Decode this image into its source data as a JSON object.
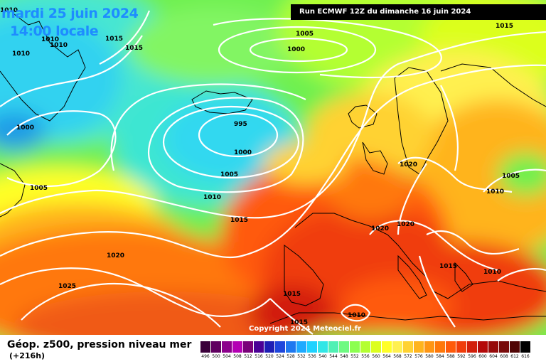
{
  "header": {
    "date": "mardi 25 juin 2024",
    "time": "14:00 locale",
    "run": "Run ECMWF 12Z du dimanche 16 juin 2024"
  },
  "copyright": "Copyright 2024 Meteociel.fr",
  "footer": {
    "title": "Géop. z500, pression niveau mer",
    "subtitle": "(+216h)"
  },
  "isobar_labels": [
    "1010",
    "1010",
    "1010",
    "1015",
    "1015",
    "1005",
    "1000",
    "1015",
    "1010",
    "1000",
    "995",
    "1000",
    "1005",
    "1010",
    "1015",
    "1005",
    "1020",
    "1020",
    "1020",
    "1020",
    "1005",
    "1010",
    "1025",
    "1015",
    "1015",
    "1010",
    "1010",
    "1015"
  ],
  "legend": {
    "values": [
      "496",
      "500",
      "504",
      "508",
      "512",
      "516",
      "520",
      "524",
      "528",
      "532",
      "536",
      "540",
      "544",
      "548",
      "552",
      "556",
      "560",
      "564",
      "568",
      "572",
      "576",
      "580",
      "584",
      "588",
      "592",
      "596",
      "600",
      "604",
      "608",
      "612",
      "616"
    ],
    "colors": [
      "#3b003b",
      "#600060",
      "#8c008c",
      "#b400b4",
      "#7a007a",
      "#4b0096",
      "#1e1eb4",
      "#1e46dc",
      "#1e78f0",
      "#1eaaff",
      "#1ed2ff",
      "#32e6e6",
      "#50f0b4",
      "#6efa82",
      "#8cff50",
      "#b4ff32",
      "#dcff1e",
      "#ffff28",
      "#fff050",
      "#ffd232",
      "#ffb41e",
      "#ff9614",
      "#ff780a",
      "#ff5a0a",
      "#f03c0a",
      "#d21e0a",
      "#b40a0a",
      "#960a0a",
      "#780a0a",
      "#500505",
      "#000000"
    ]
  },
  "colors": {
    "title_blue": "#1e8cff",
    "isobar": "#ffffff"
  }
}
